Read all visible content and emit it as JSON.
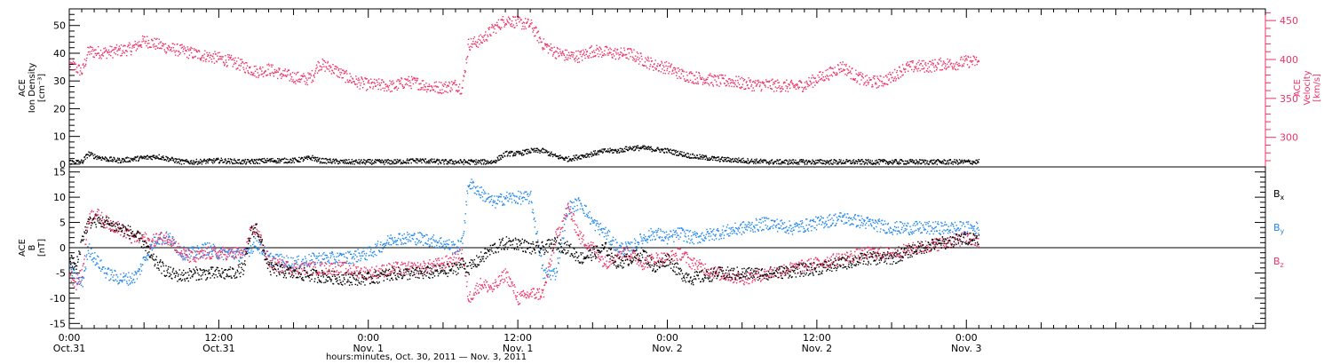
{
  "figure": {
    "xaxis_title": "hours:minutes, Oct. 30, 2011 — Nov.  3, 2011",
    "x_range_hours": [
      0,
      96
    ],
    "x_ticks": [
      {
        "h": 0,
        "time": "0:00",
        "date": "Oct.31"
      },
      {
        "h": 12,
        "time": "12:00",
        "date": "Oct.31"
      },
      {
        "h": 24,
        "time": "0:00",
        "date": "Nov. 1"
      },
      {
        "h": 36,
        "time": "12:00",
        "date": "Nov. 1"
      },
      {
        "h": 48,
        "time": "0:00",
        "date": "Nov. 2"
      },
      {
        "h": 60,
        "time": "12:00",
        "date": "Nov. 2"
      },
      {
        "h": 72,
        "time": "0:00",
        "date": "Nov. 3"
      }
    ]
  },
  "colors": {
    "black": "#000000",
    "pink": "#ee3366",
    "blue": "#2288ee"
  },
  "chart_data": [
    {
      "type": "scatter",
      "panel": "top",
      "ylabel_left": [
        "ACE",
        "Ion Density",
        "[cm⁻³]"
      ],
      "ylabel_right": [
        "ACE",
        "Velocity",
        "[km/s]"
      ],
      "ylim_left": [
        -1,
        56
      ],
      "ylim_right": [
        262,
        465
      ],
      "yticks_left": [
        0,
        10,
        20,
        30,
        40,
        50
      ],
      "yticks_right": [
        300,
        350,
        400,
        450
      ],
      "series": [
        {
          "axis": "left",
          "color": "black",
          "x": [
            0,
            1,
            1.5,
            2,
            3,
            4,
            5,
            6,
            7,
            8,
            9,
            10,
            12,
            14,
            16,
            18,
            19.5,
            20,
            22,
            24,
            26,
            28,
            30,
            32,
            33,
            34,
            35,
            36,
            37,
            38,
            39,
            40,
            41,
            42,
            43,
            44,
            45,
            46,
            48,
            50,
            52,
            54,
            56,
            58,
            60,
            62,
            64,
            66,
            68,
            70,
            72,
            73
          ],
          "y": [
            1,
            1,
            4,
            3,
            2,
            1.5,
            2,
            2.5,
            3,
            2,
            1,
            1,
            1.5,
            1,
            1.5,
            1.5,
            2.5,
            1.5,
            1,
            1,
            1,
            1.5,
            1,
            1,
            1,
            1,
            4,
            4,
            5,
            5,
            3,
            2,
            3,
            4,
            5,
            5,
            6,
            6,
            5,
            3,
            2,
            1.5,
            1,
            1,
            1,
            1,
            1,
            1,
            1,
            1,
            1,
            1
          ]
        },
        {
          "axis": "right",
          "color": "pink",
          "x": [
            0,
            0.5,
            1,
            1.5,
            2,
            3,
            4,
            5,
            6,
            7,
            8,
            9,
            10,
            11,
            12,
            13,
            14,
            15,
            16,
            17,
            18,
            19,
            19.5,
            20,
            21,
            22,
            23,
            24,
            25,
            26,
            27,
            28,
            29,
            30,
            31,
            31.5,
            32,
            33,
            34,
            35,
            36,
            37,
            38,
            39,
            40,
            41,
            42,
            43,
            44,
            45,
            46,
            47,
            48,
            49,
            50,
            51,
            52,
            53,
            54,
            55,
            56,
            57,
            58,
            59,
            60,
            61,
            62,
            63,
            64,
            65,
            66,
            67,
            68,
            69,
            70,
            71,
            72,
            73
          ],
          "y": [
            395,
            390,
            385,
            412,
            410,
            410,
            412,
            415,
            425,
            420,
            415,
            412,
            408,
            405,
            402,
            398,
            392,
            385,
            388,
            382,
            378,
            375,
            380,
            395,
            390,
            380,
            372,
            368,
            368,
            366,
            372,
            370,
            365,
            365,
            368,
            363,
            420,
            425,
            440,
            452,
            448,
            445,
            420,
            410,
            405,
            405,
            412,
            410,
            408,
            408,
            400,
            393,
            390,
            382,
            378,
            376,
            373,
            373,
            370,
            368,
            368,
            367,
            366,
            368,
            376,
            383,
            392,
            380,
            372,
            372,
            378,
            390,
            392,
            392,
            395,
            395,
            398,
            398
          ]
        }
      ]
    },
    {
      "type": "scatter",
      "panel": "bottom",
      "ylabel": [
        "ACE",
        "B",
        "[nT]"
      ],
      "ylim": [
        -16,
        16
      ],
      "yticks": [
        -15,
        -10,
        -5,
        0,
        5,
        10,
        15
      ],
      "zero_line": true,
      "legend_position": "right",
      "series": [
        {
          "name": "Bx",
          "color": "black",
          "x": [
            0,
            0.5,
            1,
            1.5,
            2,
            3,
            4,
            5,
            6,
            6.5,
            7,
            8,
            9,
            10,
            11,
            12,
            13,
            14,
            14.5,
            15,
            16,
            18,
            20,
            22,
            24,
            26,
            28,
            30,
            31,
            31.5,
            32,
            33,
            34,
            35,
            36,
            37,
            38,
            39,
            40,
            41,
            42,
            43,
            44,
            45,
            46,
            47,
            48,
            49,
            50,
            52,
            54,
            56,
            58,
            60,
            62,
            64,
            66,
            68,
            70,
            72,
            73
          ],
          "y": [
            -2,
            -4,
            2,
            5,
            5.5,
            5,
            4,
            3,
            1,
            -2,
            -3,
            -5,
            -5.5,
            -5,
            -5,
            -5,
            -5,
            -4,
            3,
            4,
            -4,
            -5,
            -5.5,
            -6,
            -6,
            -5,
            -5,
            -4.5,
            -4,
            -3,
            -4,
            -2,
            0,
            1,
            1,
            0,
            0,
            1,
            0,
            -2,
            -1,
            0,
            -3,
            -2,
            -1,
            -4,
            -2,
            -5,
            -6,
            -5,
            -5,
            -5,
            -4.5,
            -4,
            -3,
            -2,
            -2,
            0,
            1,
            2,
            2
          ]
        },
        {
          "name": "By",
          "color": "blue",
          "x": [
            0,
            0.5,
            1,
            1.5,
            2,
            3,
            4,
            5,
            5.5,
            6,
            7,
            8,
            9,
            10,
            11,
            12,
            13,
            14,
            14.5,
            15,
            16,
            18,
            20,
            22,
            24,
            26,
            28,
            30,
            31,
            31.5,
            32,
            33,
            34,
            35,
            36,
            37,
            38,
            39,
            40,
            41,
            42,
            43,
            44,
            45,
            46,
            47,
            48,
            49,
            50,
            52,
            54,
            56,
            58,
            60,
            62,
            64,
            66,
            68,
            70,
            72,
            73
          ],
          "y": [
            -4,
            -6,
            -7,
            0,
            -2,
            -5,
            -6,
            -6,
            -5,
            -2,
            2,
            2,
            -1,
            -1,
            0,
            -1,
            -1,
            -1.5,
            0,
            1,
            -2,
            -3,
            -2,
            -2,
            -1,
            2,
            2,
            1,
            0,
            1,
            13,
            11,
            9,
            10,
            10,
            10,
            -5,
            -5,
            8,
            9,
            5,
            3,
            0,
            0,
            2,
            3,
            2,
            3,
            2,
            3,
            4,
            5,
            4,
            5,
            6,
            5,
            4,
            4,
            4,
            4,
            4
          ]
        },
        {
          "name": "Bz",
          "color": "pink",
          "x": [
            0,
            0.5,
            1,
            1.5,
            2,
            3,
            4,
            5,
            6,
            6.5,
            7,
            8,
            9,
            10,
            11,
            12,
            13,
            14,
            14.5,
            15,
            16,
            18,
            20,
            22,
            24,
            26,
            28,
            30,
            31,
            31.5,
            32,
            33,
            34,
            35,
            36,
            37,
            38,
            39,
            40,
            41,
            42,
            43,
            44,
            45,
            46,
            47,
            48,
            49,
            50,
            52,
            54,
            56,
            58,
            60,
            62,
            64,
            66,
            68,
            70,
            72,
            73
          ],
          "y": [
            -5,
            -7,
            -5,
            6,
            7,
            5,
            4,
            2,
            2,
            1,
            2,
            2,
            -1,
            -2,
            -1,
            -1,
            -1,
            -1,
            3,
            4,
            -3,
            -4,
            -4,
            -4,
            -5,
            -4,
            -4,
            -3,
            -2,
            -1,
            -10,
            -7,
            -8,
            -5,
            -10,
            -9,
            -9,
            2,
            8,
            2,
            0,
            -3,
            -1,
            -1,
            -3,
            -2,
            -2,
            -1,
            -3,
            -5,
            -6,
            -5,
            -4,
            -3,
            -2,
            -1,
            -1,
            0,
            1,
            2,
            1
          ]
        }
      ]
    }
  ]
}
